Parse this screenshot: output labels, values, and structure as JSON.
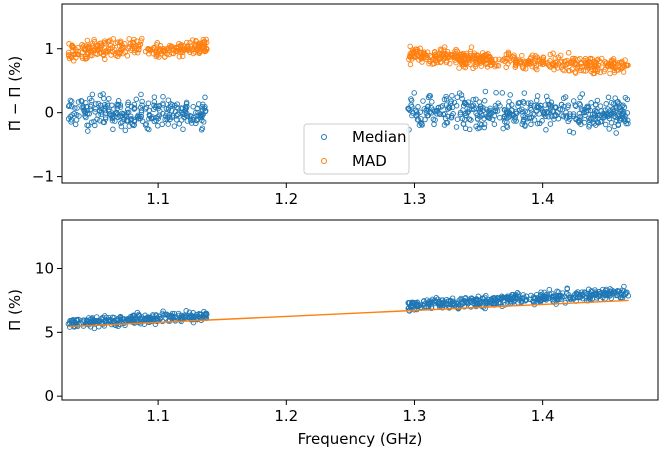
{
  "chart_data": [
    {
      "type": "scatter",
      "ylabel": "Π̃ − Π (%)",
      "xlabel": "",
      "xlim": [
        1.025,
        1.49
      ],
      "ylim": [
        -1.1,
        1.7
      ],
      "xticks": [
        "1.1",
        "1.2",
        "1.3",
        "1.4"
      ],
      "yticks": [
        "−1",
        "0",
        "1"
      ],
      "legend": {
        "placement": "lower-center",
        "entries": [
          "Median",
          "MAD"
        ]
      },
      "bands": [
        {
          "x": [
            1.03,
            1.47
          ],
          "gaps": [
            [
              1.138,
              1.295
            ]
          ]
        }
      ],
      "series": [
        {
          "name": "Median",
          "color": "#1f77b4",
          "marker": "open-circle",
          "segments": [
            {
              "x": [
                1.03,
                1.088
              ],
              "center": [
                0.0,
                0.0
              ],
              "spread": 0.45
            },
            {
              "x": [
                1.09,
                1.138
              ],
              "center": [
                0.0,
                0.0
              ],
              "spread": 0.42
            },
            {
              "x": [
                1.295,
                1.467
              ],
              "center": [
                0.0,
                0.0
              ],
              "spread": 0.45
            }
          ]
        },
        {
          "name": "MAD",
          "color": "#ff7f0e",
          "marker": "open-circle",
          "segments": [
            {
              "x": [
                1.03,
                1.088
              ],
              "center": [
                0.95,
                1.05
              ],
              "spread": 0.25
            },
            {
              "x": [
                1.09,
                1.138
              ],
              "center": [
                0.95,
                1.05
              ],
              "spread": 0.23
            },
            {
              "x": [
                1.295,
                1.467
              ],
              "center": [
                0.9,
                0.72
              ],
              "spread": 0.22
            }
          ]
        }
      ]
    },
    {
      "type": "scatter",
      "ylabel": "Π (%)",
      "xlabel": "Frequency (GHz)",
      "xlim": [
        1.025,
        1.49
      ],
      "ylim": [
        -0.3,
        13.8
      ],
      "xticks": [
        "1.1",
        "1.2",
        "1.3",
        "1.4"
      ],
      "yticks": [
        "0",
        "5",
        "10"
      ],
      "series": [
        {
          "name": "",
          "color": "#1f77b4",
          "marker": "open-circle",
          "segments": [
            {
              "x": [
                1.03,
                1.138
              ],
              "center": [
                5.7,
                6.3
              ],
              "spread": 0.7
            },
            {
              "x": [
                1.295,
                1.467
              ],
              "center": [
                7.1,
                8.1
              ],
              "spread": 0.8
            }
          ]
        },
        {
          "name": "",
          "color": "#ff7f0e",
          "type": "line",
          "x": [
            1.03,
            1.467
          ],
          "values": [
            5.45,
            7.5
          ]
        }
      ]
    }
  ]
}
